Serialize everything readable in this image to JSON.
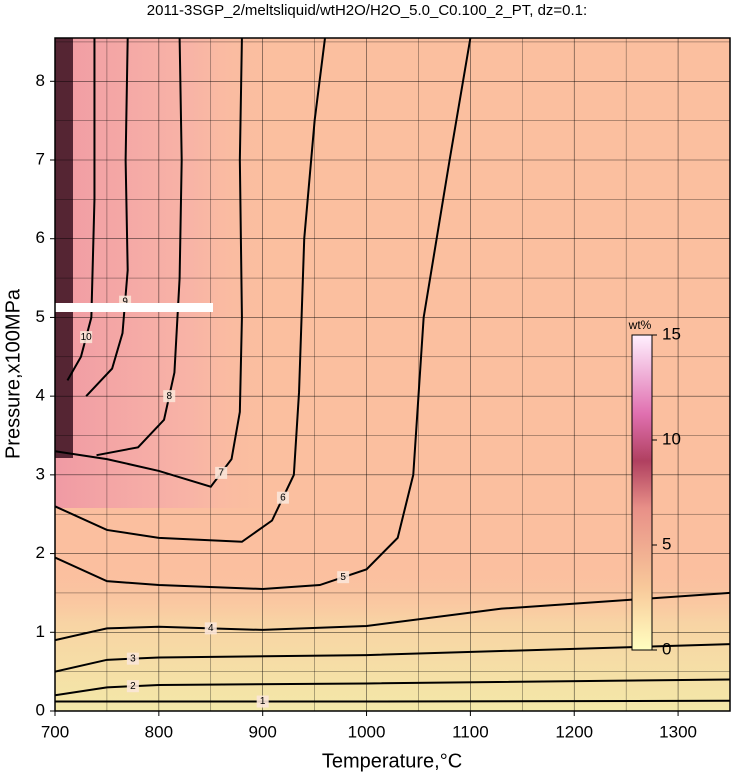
{
  "chart_data": {
    "type": "contour",
    "title": "2011-3SGP_2/meltsliquid/wtH2O/H2O_5.0_C0.100_2_PT, dz=0.1:",
    "x_label": "Temperature,°C",
    "y_label": "Pressure,x100MPa",
    "xlim": [
      700,
      1350
    ],
    "ylim": [
      0,
      8.55
    ],
    "xticks": [
      700,
      800,
      900,
      1000,
      1100,
      1200,
      1300
    ],
    "x_minor_grid": [
      750,
      850,
      950,
      1050,
      1150,
      1250,
      1350
    ],
    "yticks": [
      0,
      1,
      2,
      3,
      4,
      5,
      6,
      7,
      8
    ],
    "y_minor_grid": [
      0.5,
      1.5,
      2.5,
      3.5,
      4.5,
      5.5,
      6.5,
      7.5,
      8.5
    ],
    "grid": true,
    "contours": [
      {
        "level": 1,
        "x": [
          700,
          800,
          1000,
          1350
        ],
        "y": [
          0.12,
          0.12,
          0.12,
          0.13
        ]
      },
      {
        "level": 2,
        "x": [
          700,
          750,
          800,
          1000,
          1350
        ],
        "y": [
          0.2,
          0.3,
          0.33,
          0.35,
          0.4
        ]
      },
      {
        "level": 3,
        "x": [
          700,
          750,
          800,
          1000,
          1350
        ],
        "y": [
          0.5,
          0.65,
          0.68,
          0.71,
          0.85
        ]
      },
      {
        "level": 4,
        "x": [
          700,
          750,
          800,
          900,
          1000,
          1130,
          1350
        ],
        "y": [
          0.9,
          1.05,
          1.07,
          1.03,
          1.08,
          1.3,
          1.5
        ]
      },
      {
        "level": 5,
        "x": [
          700,
          750,
          800,
          900,
          955,
          1000,
          1030,
          1045,
          1055,
          1080,
          1100
        ],
        "y": [
          1.95,
          1.65,
          1.6,
          1.55,
          1.6,
          1.8,
          2.2,
          3.0,
          5.0,
          7.0,
          8.55
        ]
      },
      {
        "level": 6,
        "x": [
          700,
          750,
          800,
          880,
          909,
          930,
          935,
          940,
          950,
          960
        ],
        "y": [
          2.6,
          2.3,
          2.2,
          2.15,
          2.42,
          3.0,
          4.05,
          6.0,
          7.5,
          8.55
        ]
      },
      {
        "level": 7,
        "x": [
          700,
          750,
          800,
          850,
          870,
          878,
          880,
          878,
          880
        ],
        "y": [
          3.3,
          3.2,
          3.05,
          2.85,
          3.2,
          3.8,
          5.0,
          7.0,
          8.55
        ]
      },
      {
        "level": 8,
        "x": [
          740,
          780,
          805,
          815,
          820,
          822,
          820
        ],
        "y": [
          3.25,
          3.35,
          3.7,
          4.3,
          5.5,
          7.0,
          8.55
        ]
      },
      {
        "level": 9,
        "x": [
          730,
          755,
          765,
          770,
          768,
          770
        ],
        "y": [
          4.0,
          4.35,
          4.8,
          5.6,
          7.0,
          8.55
        ]
      },
      {
        "level": 10,
        "x": [
          712,
          725,
          735,
          738,
          738
        ],
        "y": [
          4.2,
          4.5,
          5.0,
          6.5,
          8.55
        ]
      }
    ],
    "colorbar": {
      "label": "wt%",
      "lim": [
        0,
        15
      ],
      "ticks": [
        0,
        5,
        10,
        15
      ]
    }
  }
}
